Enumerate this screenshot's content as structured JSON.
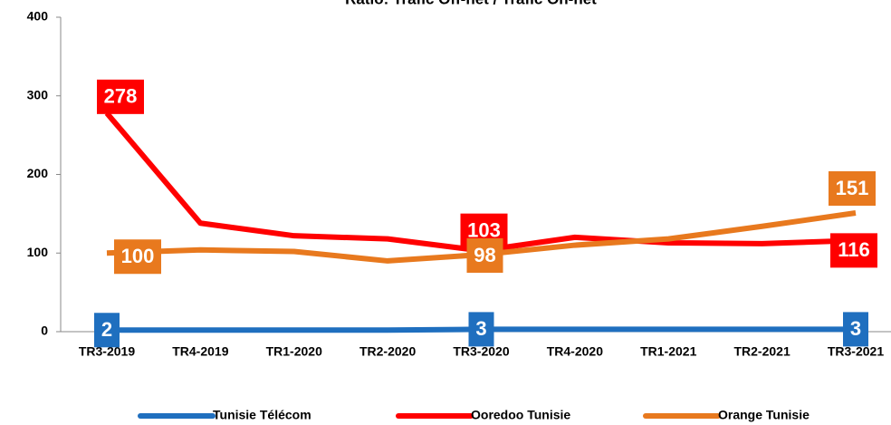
{
  "chart_data": {
    "type": "line",
    "title": "Ratio: Trafic Off-net / Trafic On-net",
    "categories": [
      "TR3-2019",
      "TR4-2019",
      "TR1-2020",
      "TR2-2020",
      "TR3-2020",
      "TR4-2020",
      "TR1-2021",
      "TR2-2021",
      "TR3-2021"
    ],
    "series": [
      {
        "name": "Tunisie Télécom",
        "color": "#1f6fbf",
        "values": [
          2,
          2,
          2,
          2,
          3,
          3,
          3,
          3,
          3
        ],
        "value_labels": [
          "2",
          null,
          null,
          null,
          "3",
          null,
          null,
          null,
          "3"
        ]
      },
      {
        "name": "Ooredoo Tunisie",
        "color": "#ff0000",
        "values": [
          278,
          138,
          122,
          118,
          103,
          120,
          113,
          112,
          116
        ],
        "value_labels": [
          "278",
          null,
          null,
          null,
          "103",
          null,
          null,
          null,
          "116"
        ]
      },
      {
        "name": "Orange Tunisie",
        "color": "#e8791e",
        "values": [
          100,
          104,
          102,
          90,
          98,
          110,
          118,
          134,
          151
        ],
        "value_labels": [
          "100",
          null,
          null,
          null,
          "98",
          null,
          null,
          null,
          "151"
        ]
      }
    ],
    "ylim": [
      0,
      400
    ],
    "yticks": [
      0,
      100,
      200,
      300,
      400
    ],
    "legend": "bottom"
  }
}
